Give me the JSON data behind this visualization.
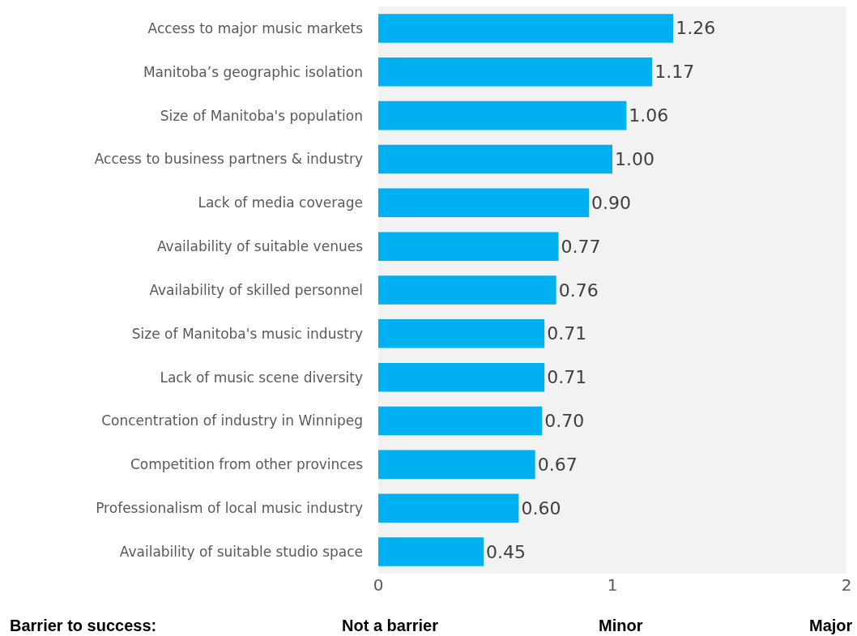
{
  "chart_data": {
    "type": "bar",
    "orientation": "horizontal",
    "categories": [
      "Access to major music markets",
      "Manitoba’s geographic isolation",
      "Size of Manitoba's population",
      "Access to business partners & industry",
      "Lack of media coverage",
      "Availability of suitable venues",
      "Availability of skilled personnel",
      "Size of Manitoba's music industry",
      "Lack of music scene diversity",
      "Concentration of industry in Winnipeg",
      "Competition from other provinces",
      "Professionalism of local music industry",
      "Availability of suitable studio space"
    ],
    "values": [
      1.26,
      1.17,
      1.06,
      1.0,
      0.9,
      0.77,
      0.76,
      0.71,
      0.71,
      0.7,
      0.67,
      0.6,
      0.45
    ],
    "value_labels": [
      "1.26",
      "1.17",
      "1.06",
      "1.00",
      "0.90",
      "0.77",
      "0.76",
      "0.71",
      "0.71",
      "0.70",
      "0.67",
      "0.60",
      "0.45"
    ],
    "color": "#00b0f0",
    "xlim": [
      0,
      2
    ],
    "xticks": [
      0,
      1,
      2
    ],
    "grid": false,
    "annotations": [
      "Barrier to success:",
      "Not a barrier",
      "Minor",
      "Major"
    ]
  }
}
